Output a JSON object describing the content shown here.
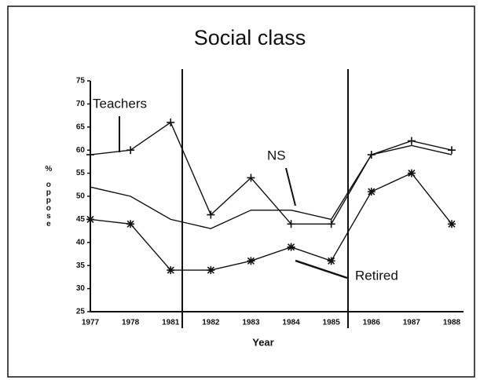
{
  "chart_data": {
    "type": "line",
    "title": "Social class",
    "xlabel": "Year",
    "ylabel": "% oppose",
    "categories": [
      "1977",
      "1978",
      "1981",
      "1982",
      "1983",
      "1984",
      "1985",
      "1986",
      "1987",
      "1988"
    ],
    "series": [
      {
        "name": "Teachers",
        "color": "#111111",
        "marker": "+",
        "values": [
          59,
          60,
          66,
          46,
          54,
          44,
          44,
          59,
          62,
          60
        ]
      },
      {
        "name": "NS",
        "color": "#111111",
        "marker": "none",
        "values": [
          52,
          50,
          45,
          43,
          47,
          47,
          45,
          59,
          61,
          59
        ]
      },
      {
        "name": "Retired",
        "color": "#111111",
        "marker": "*",
        "values": [
          45,
          44,
          34,
          34,
          36,
          39,
          36,
          51,
          55,
          44
        ]
      }
    ],
    "ylim": [
      25,
      75
    ],
    "yticks": [
      25,
      30,
      35,
      40,
      45,
      50,
      55,
      60,
      65,
      70,
      75
    ]
  }
}
